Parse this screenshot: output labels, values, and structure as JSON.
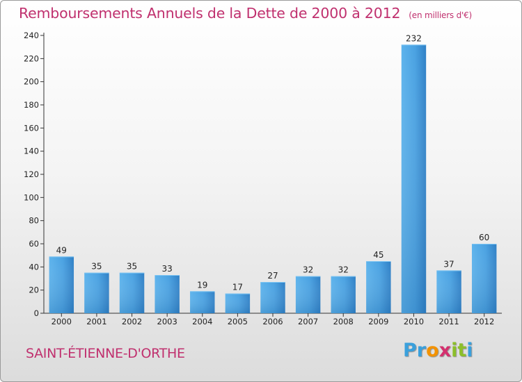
{
  "title": "Remboursements Annuels de la Dette de 2000 à 2012",
  "unit": "(en milliers d'€)",
  "commune": "SAINT-ÉTIENNE-D'ORTHE",
  "logo": {
    "letters": [
      {
        "char": "P",
        "color": "#3aa0dc"
      },
      {
        "char": "r",
        "color": "#3aa0dc"
      },
      {
        "char": "o",
        "color": "#f39200"
      },
      {
        "char": "x",
        "color": "#d4306e"
      },
      {
        "char": "i",
        "color": "#8cbf2a"
      },
      {
        "char": "t",
        "color": "#8cbf2a"
      },
      {
        "char": "i",
        "color": "#3aa0dc"
      }
    ]
  },
  "chart_data": {
    "type": "bar",
    "title": "Remboursements Annuels de la Dette de 2000 à 2012",
    "categories": [
      "2000",
      "2001",
      "2002",
      "2003",
      "2004",
      "2005",
      "2006",
      "2007",
      "2008",
      "2009",
      "2010",
      "2011",
      "2012"
    ],
    "values": [
      49,
      35,
      35,
      33,
      19,
      17,
      27,
      32,
      32,
      45,
      232,
      37,
      60
    ],
    "yticks": [
      0,
      20,
      40,
      60,
      80,
      100,
      120,
      140,
      160,
      180,
      200,
      220,
      240
    ],
    "ylim": [
      0,
      240
    ],
    "grid": false,
    "bar_color": "#4a9fe0",
    "legend": "none"
  }
}
